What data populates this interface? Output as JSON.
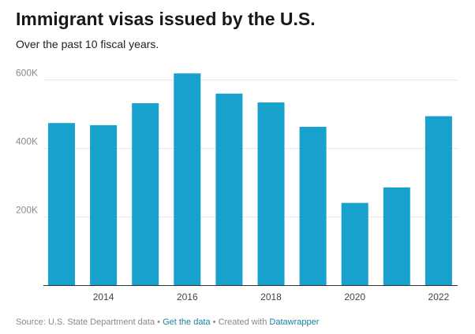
{
  "title": "Immigrant visas issued by the U.S.",
  "subtitle": "Over the past 10 fiscal years.",
  "colors": {
    "bar": "#18a1cd",
    "grid": "#e6e6e6",
    "axis": "#333333",
    "tick_text": "#8a8a8a",
    "year_text": "#444444",
    "link": "#1d81a2"
  },
  "footer": {
    "source_label": "Source: U.S. State Department data",
    "separator1": " • ",
    "get_data_link": "Get the data",
    "separator2": " • Created with ",
    "datawrapper_link": "Datawrapper"
  },
  "chart_data": {
    "type": "bar",
    "categories": [
      "2013",
      "2014",
      "2015",
      "2016",
      "2017",
      "2018",
      "2019",
      "2020",
      "2021",
      "2022"
    ],
    "values": [
      473000,
      467000,
      531000,
      618000,
      559000,
      533000,
      462000,
      240000,
      285000,
      493000
    ],
    "x_tick_labels": [
      "2014",
      "2016",
      "2018",
      "2020",
      "2022"
    ],
    "y_ticks": [
      200000,
      400000,
      600000
    ],
    "y_tick_labels": [
      "200K",
      "400K",
      "600K"
    ],
    "ylim": [
      0,
      600000
    ],
    "title": "Immigrant visas issued by the U.S.",
    "xlabel": "",
    "ylabel": "",
    "grid": true,
    "legend": "none"
  }
}
